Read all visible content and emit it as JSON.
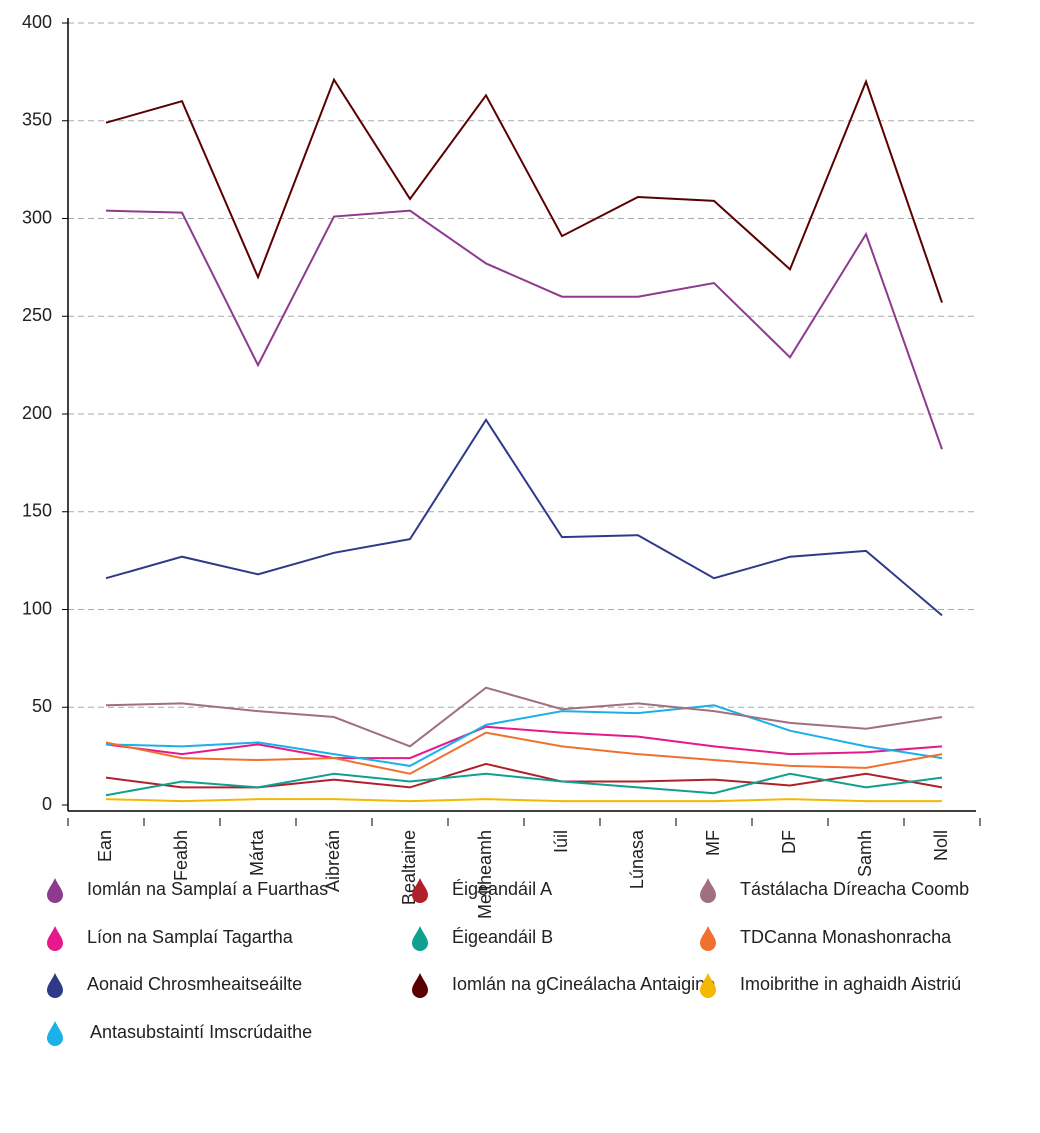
{
  "chart_data": {
    "type": "line",
    "categories": [
      "Ean",
      "Feabh",
      "Márta",
      "Aibreán",
      "Bealtaine",
      "Meitheamh",
      "Iúil",
      "Lúnasa",
      "MF",
      "DF",
      "Samh",
      "Noll"
    ],
    "ylim": [
      0,
      400
    ],
    "yticks": [
      0,
      50,
      100,
      150,
      200,
      250,
      300,
      350,
      400
    ],
    "grid": true,
    "series": [
      {
        "name": "Iomlán na Samplaí a Fuarthas",
        "color": "#8e3a8e",
        "values": [
          304,
          303,
          225,
          301,
          304,
          277,
          260,
          260,
          267,
          229,
          292,
          182
        ]
      },
      {
        "name": "Líon na Samplaí Tagartha",
        "color": "#e6198c",
        "values": [
          31,
          26,
          31,
          24,
          24,
          40,
          37,
          35,
          30,
          26,
          27,
          30
        ]
      },
      {
        "name": "Aonaid Chrosmheaitseáilte",
        "color": "#2e3a87",
        "values": [
          116,
          127,
          118,
          129,
          136,
          197,
          137,
          138,
          116,
          127,
          130,
          97
        ]
      },
      {
        "name": "Antasubstaintí Imscrúdaithe",
        "color": "#1ab0e8",
        "values": [
          31,
          30,
          32,
          26,
          20,
          41,
          48,
          47,
          51,
          38,
          30,
          24
        ]
      },
      {
        "name": "Éigeandáil A",
        "color": "#b0202a",
        "values": [
          14,
          9,
          9,
          13,
          9,
          21,
          12,
          12,
          13,
          10,
          16,
          9
        ]
      },
      {
        "name": "Éigeandáil B",
        "color": "#10a090",
        "values": [
          5,
          12,
          9,
          16,
          12,
          16,
          12,
          9,
          6,
          16,
          9,
          14
        ]
      },
      {
        "name": "Iomlán na gCineálacha Antaigine",
        "color": "#5a0000",
        "values": [
          349,
          360,
          270,
          371,
          310,
          363,
          291,
          311,
          309,
          274,
          370,
          257
        ]
      },
      {
        "name": "Tástálacha Díreacha Coomb",
        "color": "#a07080",
        "values": [
          51,
          52,
          48,
          45,
          30,
          60,
          49,
          52,
          48,
          42,
          39,
          45
        ]
      },
      {
        "name": "TDCanna Monashonracha",
        "color": "#f07030",
        "values": [
          32,
          24,
          23,
          24,
          16,
          37,
          30,
          26,
          23,
          20,
          19,
          26
        ]
      },
      {
        "name": "Imoibrithe in aghaidh Aistriú",
        "color": "#f5b800",
        "values": [
          3,
          2,
          3,
          3,
          2,
          3,
          2,
          2,
          2,
          3,
          2,
          2
        ]
      }
    ]
  }
}
